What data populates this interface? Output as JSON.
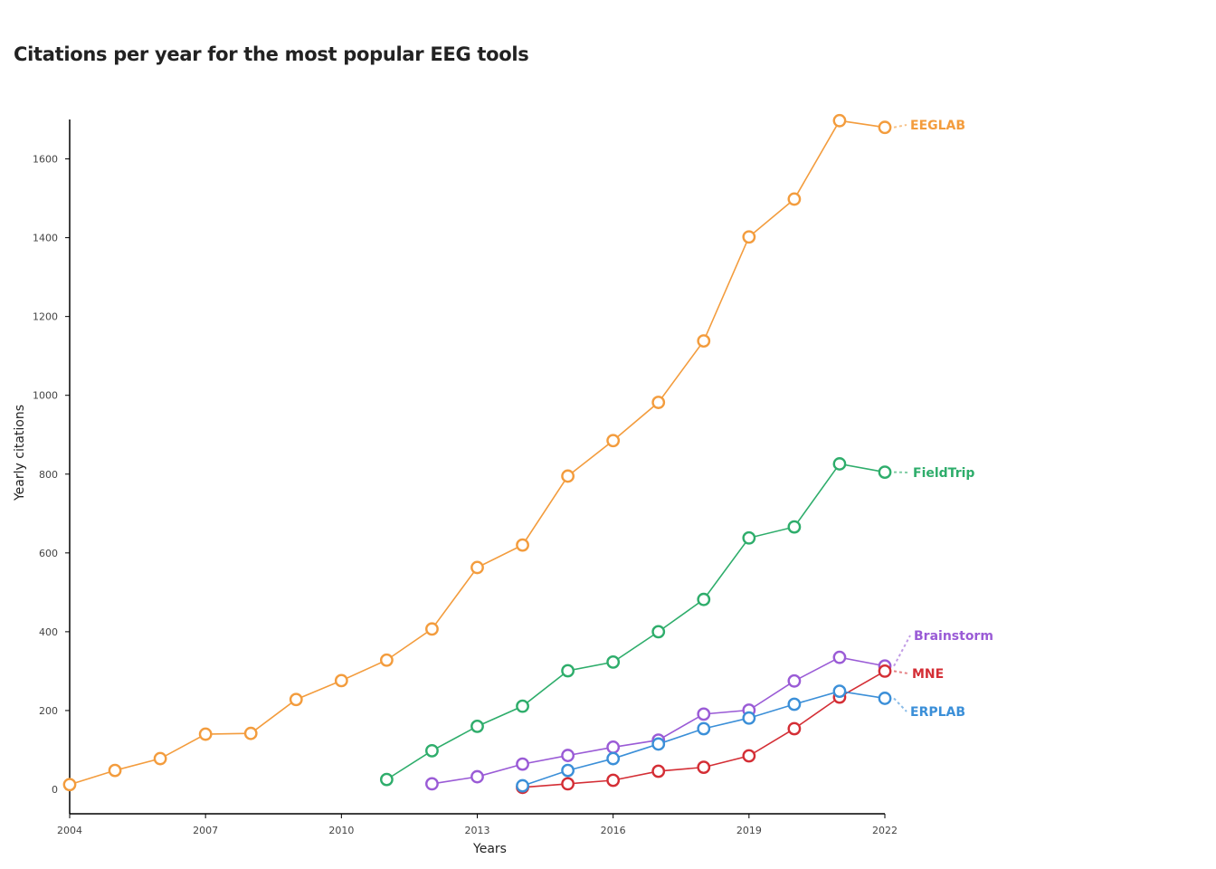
{
  "chart_data": {
    "type": "line",
    "title": "Citations per year for the most popular EEG tools",
    "xlabel": "Years",
    "ylabel": "Yearly citations",
    "xlim": [
      2004,
      2022
    ],
    "ylim": [
      0,
      1700
    ],
    "x_ticks": [
      2004,
      2007,
      2010,
      2013,
      2016,
      2019,
      2022
    ],
    "y_ticks": [
      0,
      200,
      400,
      600,
      800,
      1000,
      1200,
      1400,
      1600
    ],
    "grid": false,
    "legend": "direct labels at line ends",
    "series": [
      {
        "name": "EEGLAB",
        "color": "#F39C3D",
        "x": [
          2004,
          2005,
          2006,
          2007,
          2008,
          2009,
          2010,
          2011,
          2012,
          2013,
          2014,
          2015,
          2016,
          2017,
          2018,
          2019,
          2020,
          2021,
          2022
        ],
        "values": [
          12,
          48,
          78,
          140,
          142,
          228,
          276,
          328,
          407,
          563,
          620,
          795,
          885,
          982,
          1138,
          1402,
          1498,
          1697,
          1680
        ]
      },
      {
        "name": "FieldTrip",
        "color": "#2EAD6B",
        "x": [
          2011,
          2012,
          2013,
          2014,
          2015,
          2016,
          2017,
          2018,
          2019,
          2020,
          2021,
          2022
        ],
        "values": [
          25,
          98,
          160,
          211,
          301,
          323,
          400,
          482,
          638,
          666,
          826,
          805
        ]
      },
      {
        "name": "Brainstorm",
        "color": "#9A5BD6",
        "x": [
          2012,
          2013,
          2014,
          2015,
          2016,
          2017,
          2018,
          2019,
          2020,
          2021,
          2022
        ],
        "values": [
          14,
          32,
          64,
          86,
          107,
          125,
          191,
          201,
          275,
          335,
          313
        ]
      },
      {
        "name": "MNE",
        "color": "#D42E35",
        "x": [
          2014,
          2015,
          2016,
          2017,
          2018,
          2019,
          2020,
          2021,
          2022
        ],
        "values": [
          5,
          14,
          23,
          46,
          56,
          85,
          154,
          234,
          300
        ]
      },
      {
        "name": "ERPLAB",
        "color": "#3B8FD8",
        "x": [
          2014,
          2015,
          2016,
          2017,
          2018,
          2019,
          2020,
          2021,
          2022
        ],
        "values": [
          9,
          48,
          78,
          115,
          154,
          181,
          216,
          249,
          231
        ]
      }
    ]
  }
}
